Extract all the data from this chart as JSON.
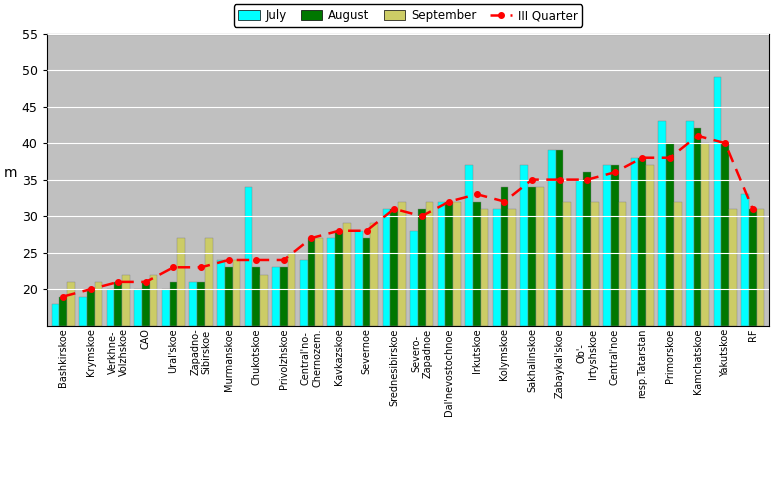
{
  "categories": [
    "Bashkirskoe",
    "Krymskoe",
    "Verkhne-\nVolzhskoe",
    "CAO",
    "Ural'skoe",
    "Zapadno-\nSibirskoe",
    "Murmanskoe",
    "Chukotskoe",
    "Privolzhskoe",
    "Central'no-\nChernozem.",
    "Kavkazskoe",
    "Severnoe",
    "Srednesibirskoe",
    "Severo-\nZapadnoe",
    "Dal'nevostochnoe",
    "Irkutskoe",
    "Kolymskoe",
    "Sakhalinskoe",
    "Zabaykal'skoe",
    "Ob'-\nIrtyshskoe",
    "Central'noe",
    "resp.Tatarstan",
    "Primorskoe",
    "Kamchatskoe",
    "Yakutskoe",
    "RF"
  ],
  "july": [
    18,
    19,
    20,
    20,
    20,
    21,
    24,
    34,
    23,
    24,
    27,
    28,
    31,
    28,
    32,
    37,
    31,
    37,
    39,
    35,
    37,
    38,
    43,
    43,
    49,
    33
  ],
  "august": [
    19,
    20,
    21,
    21,
    21,
    21,
    23,
    23,
    23,
    27,
    28,
    27,
    31,
    31,
    32,
    32,
    34,
    34,
    39,
    36,
    37,
    38,
    40,
    42,
    40,
    31
  ],
  "september": [
    21,
    21,
    22,
    22,
    27,
    27,
    24,
    22,
    25,
    27,
    29,
    29,
    32,
    32,
    32,
    31,
    31,
    34,
    32,
    32,
    32,
    37,
    32,
    40,
    31,
    31
  ],
  "quarter": [
    19,
    20,
    21,
    21,
    23,
    23,
    24,
    24,
    24,
    27,
    28,
    28,
    31,
    30,
    32,
    33,
    32,
    35,
    35,
    35,
    36,
    38,
    38,
    41,
    40,
    31
  ],
  "bar_july": "#00FFFF",
  "bar_august": "#007700",
  "bar_september": "#CCCC66",
  "line_quarter": "#FF0000",
  "bg_color": "#C0C0C0",
  "ylabel": "m",
  "ylim": [
    15,
    55
  ],
  "yticks": [
    20,
    25,
    30,
    35,
    40,
    45,
    50,
    55
  ],
  "legend_labels": [
    "July",
    "August",
    "September",
    "III Quarter"
  ],
  "bar_width": 0.28,
  "bar_edgecolor": "gray",
  "figwidth": 7.77,
  "figheight": 4.79,
  "dpi": 100
}
